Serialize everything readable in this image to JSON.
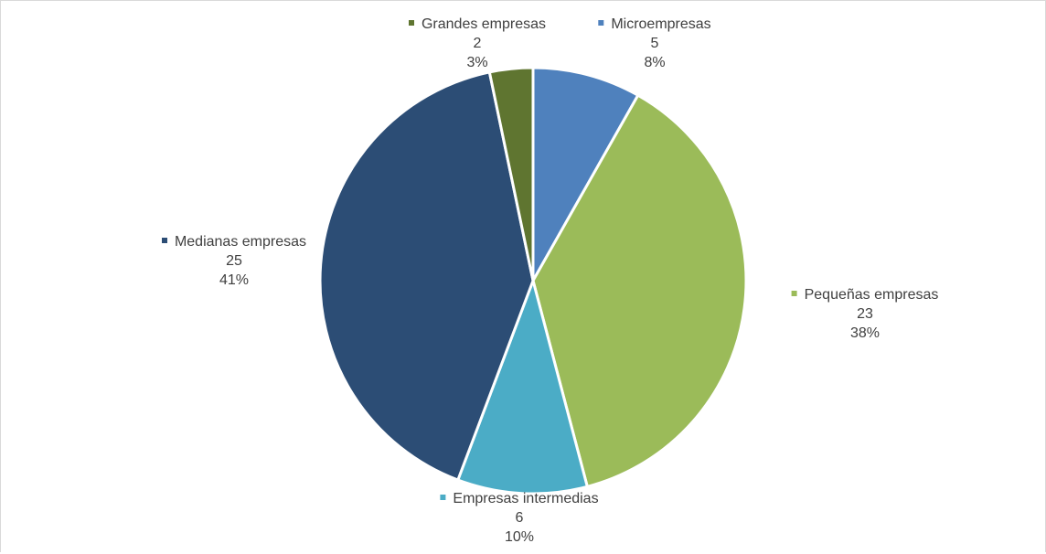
{
  "chart_data": {
    "type": "pie",
    "title": "",
    "slices": [
      {
        "label": "Microempresas",
        "value": 5,
        "percent": "8%",
        "color": "#4f81bd"
      },
      {
        "label": "Pequeñas empresas",
        "value": 23,
        "percent": "38%",
        "color": "#9bbb59"
      },
      {
        "label": "Empresas intermedias",
        "value": 6,
        "percent": "10%",
        "color": "#4bacc6"
      },
      {
        "label": "Medianas empresas",
        "value": 25,
        "percent": "41%",
        "color": "#2c4d75"
      },
      {
        "label": "Grandes empresas",
        "value": 2,
        "percent": "3%",
        "color": "#5f7530"
      }
    ],
    "start_angle_deg": 0,
    "direction": "clockwise",
    "slice_border_color": "#ffffff",
    "legend": "none",
    "data_labels": "category, value, percent with legend key"
  }
}
